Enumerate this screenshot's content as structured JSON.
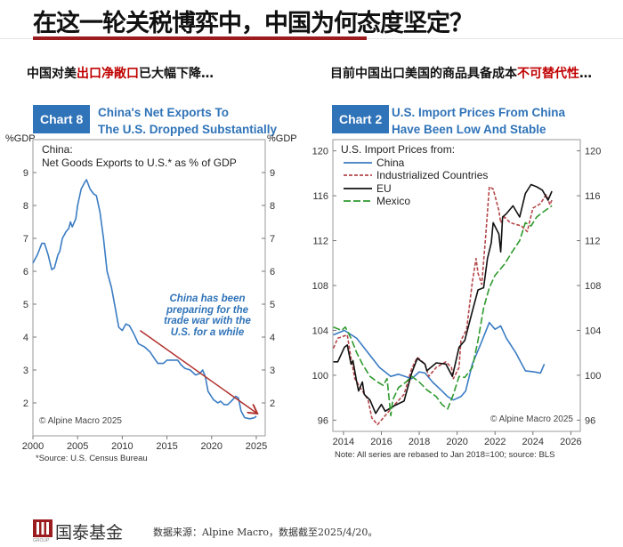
{
  "header": {
    "title": "在这一轮关税博弈中，中国为何态度坚定？"
  },
  "left_subtitle": {
    "pre": "中国对美",
    "red": "出口净敞口",
    "post": "已大幅下降…"
  },
  "right_subtitle": {
    "pre": "目前中国出口美国的商品具备成本",
    "red": "不可替代性",
    "post": "…"
  },
  "footer": {
    "logo": "国泰基金",
    "logo_small": "GROUP",
    "source": "数据来源：Alpine Macro，数据截至2025/4/20。"
  },
  "colors": {
    "blue": "#3a7cc3",
    "red": "#b5474a",
    "black": "#111111",
    "green": "#2e9a2e",
    "arrow": "#b0302c",
    "accent": "#9b1c1f"
  },
  "chart_data": [
    {
      "type": "line",
      "chip": "Chart 8",
      "title": [
        "China's Net Exports To",
        "The U.S. Dropped Substantially"
      ],
      "legend_title": [
        "China:",
        "Net Goods Exports to U.S.* as % of GDP"
      ],
      "ylabel": "%GDP",
      "xlim": [
        2000,
        2026
      ],
      "ylim": [
        1,
        10
      ],
      "xticks": [
        "2000",
        "2005",
        "2010",
        "2015",
        "2020",
        "2025"
      ],
      "yticks": [
        "2",
        "3",
        "4",
        "5",
        "6",
        "7",
        "8",
        "9"
      ],
      "annotation": [
        "China has been",
        "preparing for the",
        "trade war with the",
        "U.S. for a while"
      ],
      "arrow": {
        "from": [
          2012,
          4.2
        ],
        "to": [
          2025,
          1.7
        ]
      },
      "copyright": "© Alpine Macro 2025",
      "source": "*Source: U.S. Census Bureau",
      "series": [
        {
          "name": "China",
          "color": "blue",
          "points": [
            [
              2000,
              6.25
            ],
            [
              2000.5,
              6.5
            ],
            [
              2001,
              6.85
            ],
            [
              2001.3,
              6.85
            ],
            [
              2001.7,
              6.5
            ],
            [
              2002.1,
              6.05
            ],
            [
              2002.4,
              6.1
            ],
            [
              2002.8,
              6.5
            ],
            [
              2003,
              6.6
            ],
            [
              2003.3,
              7.0
            ],
            [
              2003.7,
              7.2
            ],
            [
              2004,
              7.3
            ],
            [
              2004.2,
              7.5
            ],
            [
              2004.4,
              7.35
            ],
            [
              2004.8,
              7.6
            ],
            [
              2005,
              8.0
            ],
            [
              2005.4,
              8.5
            ],
            [
              2005.8,
              8.7
            ],
            [
              2006,
              8.78
            ],
            [
              2006.4,
              8.5
            ],
            [
              2006.8,
              8.35
            ],
            [
              2007.1,
              8.3
            ],
            [
              2007.5,
              7.8
            ],
            [
              2007.9,
              7.0
            ],
            [
              2008.3,
              6.0
            ],
            [
              2008.8,
              5.5
            ],
            [
              2009.2,
              4.9
            ],
            [
              2009.6,
              4.3
            ],
            [
              2010,
              4.2
            ],
            [
              2010.4,
              4.4
            ],
            [
              2010.8,
              4.35
            ],
            [
              2011.3,
              4.1
            ],
            [
              2011.8,
              3.8
            ],
            [
              2012.5,
              3.7
            ],
            [
              2013.1,
              3.55
            ],
            [
              2013.6,
              3.35
            ],
            [
              2014,
              3.2
            ],
            [
              2014.6,
              3.2
            ],
            [
              2015,
              3.3
            ],
            [
              2015.6,
              3.3
            ],
            [
              2016.2,
              3.3
            ],
            [
              2016.6,
              3.15
            ],
            [
              2017,
              3.05
            ],
            [
              2017.6,
              3.0
            ],
            [
              2018.2,
              2.85
            ],
            [
              2018.7,
              2.9
            ],
            [
              2019,
              3.0
            ],
            [
              2019.3,
              2.8
            ],
            [
              2019.6,
              2.35
            ],
            [
              2020.2,
              2.1
            ],
            [
              2020.7,
              2.0
            ],
            [
              2021,
              2.05
            ],
            [
              2021.4,
              1.95
            ],
            [
              2021.8,
              1.95
            ],
            [
              2022.2,
              2.05
            ],
            [
              2022.7,
              2.2
            ],
            [
              2023,
              2.15
            ],
            [
              2023.3,
              1.75
            ],
            [
              2023.7,
              1.55
            ],
            [
              2024.3,
              1.52
            ],
            [
              2024.8,
              1.55
            ],
            [
              2025,
              1.6
            ]
          ]
        }
      ]
    },
    {
      "type": "line",
      "chip": "Chart 2",
      "title": [
        "U.S. Import Prices From China",
        "Have Been Low And Stable"
      ],
      "legend_title": "U.S. Import Prices from:",
      "xlim": [
        2013.44,
        2026.5
      ],
      "ylim": [
        95,
        121
      ],
      "xticks": [
        "2014",
        "2016",
        "2018",
        "2020",
        "2022",
        "2024",
        "2026"
      ],
      "yticks": [
        "96",
        "100",
        "104",
        "108",
        "112",
        "116",
        "120"
      ],
      "copyright": "© Alpine Macro 2025",
      "note": "Note: All series are rebased to Jan 2018=100; source: BLS",
      "series": [
        {
          "name": "China",
          "color": "blue",
          "dash": "",
          "points": [
            [
              2013.47,
              103.6
            ],
            [
              2014.05,
              104.0
            ],
            [
              2014.7,
              103.3
            ],
            [
              2015.3,
              102.0
            ],
            [
              2015.9,
              100.7
            ],
            [
              2016.5,
              99.9
            ],
            [
              2016.9,
              100.1
            ],
            [
              2017.25,
              99.9
            ],
            [
              2017.6,
              99.7
            ],
            [
              2018,
              100.3
            ],
            [
              2018.3,
              100.2
            ],
            [
              2018.7,
              99.4
            ],
            [
              2019.2,
              98.6
            ],
            [
              2019.5,
              98.1
            ],
            [
              2019.8,
              97.8
            ],
            [
              2020.2,
              98.1
            ],
            [
              2020.45,
              98.6
            ],
            [
              2020.8,
              101.0
            ],
            [
              2021.2,
              102.6
            ],
            [
              2021.7,
              104.7
            ],
            [
              2022.0,
              104.1
            ],
            [
              2022.3,
              104.4
            ],
            [
              2022.6,
              103.3
            ],
            [
              2023.1,
              102.0
            ],
            [
              2023.6,
              100.4
            ],
            [
              2024.05,
              100.3
            ],
            [
              2024.4,
              100.2
            ],
            [
              2024.6,
              101.0
            ]
          ]
        },
        {
          "name": "Industrialized Countries",
          "color": "red",
          "dash": "4,2",
          "points": [
            [
              2013.47,
              102.4
            ],
            [
              2013.7,
              103.3
            ],
            [
              2014.2,
              103.6
            ],
            [
              2014.4,
              101.5
            ],
            [
              2014.6,
              99.7
            ],
            [
              2015,
              98.6
            ],
            [
              2015.3,
              97.8
            ],
            [
              2015.5,
              96.2
            ],
            [
              2015.8,
              95.6
            ],
            [
              2016.1,
              96.2
            ],
            [
              2016.5,
              97.0
            ],
            [
              2017.2,
              98.3
            ],
            [
              2017.6,
              100.6
            ],
            [
              2017.9,
              101.6
            ],
            [
              2018.3,
              101.0
            ],
            [
              2018.5,
              99.9
            ],
            [
              2018.9,
              100.7
            ],
            [
              2019.4,
              101.2
            ],
            [
              2019.7,
              100.7
            ],
            [
              2019.8,
              99.7
            ],
            [
              2020.1,
              100.7
            ],
            [
              2020.2,
              103.1
            ],
            [
              2020.5,
              104.1
            ],
            [
              2020.8,
              108.3
            ],
            [
              2021.0,
              110.4
            ],
            [
              2021.1,
              109.1
            ],
            [
              2021.3,
              108.1
            ],
            [
              2021.5,
              112.3
            ],
            [
              2021.7,
              116.8
            ],
            [
              2021.9,
              116.6
            ],
            [
              2022.2,
              114.7
            ],
            [
              2022.3,
              113.6
            ],
            [
              2022.5,
              114.1
            ],
            [
              2022.8,
              113.6
            ],
            [
              2023.4,
              113.3
            ],
            [
              2023.7,
              112.8
            ],
            [
              2024,
              114.9
            ],
            [
              2024.4,
              115.3
            ],
            [
              2024.7,
              116.1
            ],
            [
              2024.9,
              115.2
            ],
            [
              2025,
              115.6
            ]
          ]
        },
        {
          "name": "EU",
          "color": "black",
          "dash": "",
          "points": [
            [
              2013.47,
              101.2
            ],
            [
              2013.7,
              101.2
            ],
            [
              2014.05,
              102.5
            ],
            [
              2014.2,
              102.7
            ],
            [
              2014.4,
              101.0
            ],
            [
              2014.5,
              101.3
            ],
            [
              2014.7,
              99.4
            ],
            [
              2014.8,
              98.6
            ],
            [
              2015,
              99.4
            ],
            [
              2015.1,
              98.3
            ],
            [
              2015.4,
              97.8
            ],
            [
              2015.7,
              96.6
            ],
            [
              2016,
              97.4
            ],
            [
              2016.2,
              96.8
            ],
            [
              2016.7,
              97.3
            ],
            [
              2017.2,
              97.7
            ],
            [
              2017.6,
              100.2
            ],
            [
              2017.9,
              101.5
            ],
            [
              2018.3,
              101.0
            ],
            [
              2018.4,
              100.4
            ],
            [
              2018.9,
              101.1
            ],
            [
              2019.4,
              101.0
            ],
            [
              2019.75,
              99.9
            ],
            [
              2019.9,
              101.0
            ],
            [
              2020.1,
              102.5
            ],
            [
              2020.4,
              103.1
            ],
            [
              2020.8,
              105.7
            ],
            [
              2021.1,
              107.6
            ],
            [
              2021.4,
              107.8
            ],
            [
              2021.6,
              110.4
            ],
            [
              2021.8,
              111.8
            ],
            [
              2021.9,
              113.6
            ],
            [
              2022.2,
              112.6
            ],
            [
              2022.3,
              111.0
            ],
            [
              2022.4,
              114.1
            ],
            [
              2022.6,
              114.4
            ],
            [
              2022.95,
              115.1
            ],
            [
              2023.3,
              114.1
            ],
            [
              2023.6,
              116.2
            ],
            [
              2023.9,
              117.0
            ],
            [
              2024.2,
              116.8
            ],
            [
              2024.5,
              116.5
            ],
            [
              2024.8,
              115.6
            ],
            [
              2025,
              116.4
            ]
          ]
        },
        {
          "name": "Mexico",
          "color": "green",
          "dash": "8,3",
          "points": [
            [
              2013.47,
              104.3
            ],
            [
              2013.9,
              104.0
            ],
            [
              2014.1,
              104.3
            ],
            [
              2014.4,
              103.3
            ],
            [
              2014.7,
              102.0
            ],
            [
              2015,
              101.0
            ],
            [
              2015.4,
              99.9
            ],
            [
              2015.8,
              99.4
            ],
            [
              2016.1,
              99.1
            ],
            [
              2016.3,
              99.7
            ],
            [
              2016.5,
              96.4
            ],
            [
              2016.6,
              97.8
            ],
            [
              2016.9,
              98.9
            ],
            [
              2017.3,
              99.4
            ],
            [
              2017.6,
              99.9
            ],
            [
              2018,
              99.4
            ],
            [
              2018.4,
              98.7
            ],
            [
              2018.9,
              98.1
            ],
            [
              2019.2,
              97.4
            ],
            [
              2019.5,
              97.0
            ],
            [
              2019.8,
              98.3
            ],
            [
              2020.1,
              99.9
            ],
            [
              2020.4,
              99.8
            ],
            [
              2020.8,
              100.7
            ],
            [
              2021.1,
              103.1
            ],
            [
              2021.4,
              106.0
            ],
            [
              2021.7,
              107.8
            ],
            [
              2022.0,
              108.9
            ],
            [
              2022.5,
              109.9
            ],
            [
              2022.9,
              111.0
            ],
            [
              2023.3,
              112.0
            ],
            [
              2023.6,
              113.6
            ],
            [
              2023.9,
              113.3
            ],
            [
              2024.2,
              114.1
            ],
            [
              2024.5,
              114.5
            ],
            [
              2025,
              115.1
            ]
          ]
        }
      ]
    }
  ]
}
